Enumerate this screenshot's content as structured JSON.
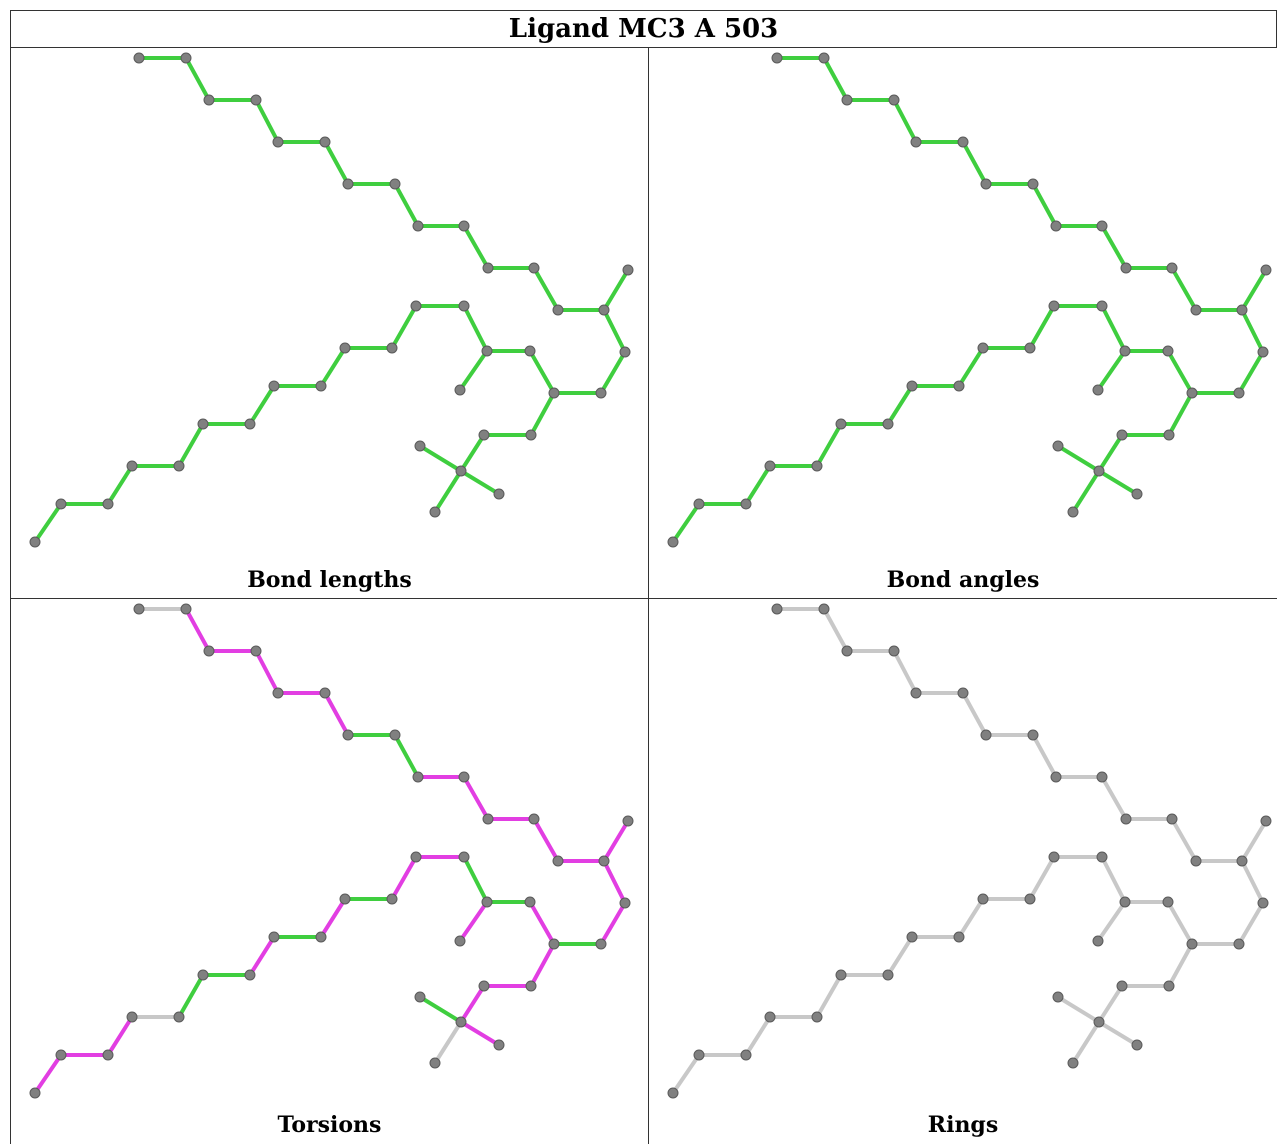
{
  "title": "Ligand MC3 A 503",
  "panels": [
    {
      "caption": "Bond lengths",
      "default": "green",
      "overrides": {}
    },
    {
      "caption": "Bond angles",
      "default": "green",
      "overrides": {
        "43": "magenta",
        "44": "magenta"
      }
    },
    {
      "caption": "Torsions",
      "default": "magenta",
      "overrides": {
        "0": "grey",
        "6": "green",
        "7": "green",
        "16": "green",
        "20": "green",
        "22": "grey",
        "24": "green",
        "26": "green",
        "29": "green",
        "31": "green",
        "33": "green",
        "34": "green",
        "35": "grey",
        "42": "grey",
        "43": "grey",
        "44": "grey",
        "45": "grey"
      }
    },
    {
      "caption": "Rings",
      "default": "grey",
      "overrides": {}
    }
  ],
  "colors": {
    "green": "#3fce3f",
    "magenta": "#e23ee2",
    "grey": "#c8c8c8",
    "atom": "#808080",
    "atom_edge": "#5a5a5a"
  }
}
